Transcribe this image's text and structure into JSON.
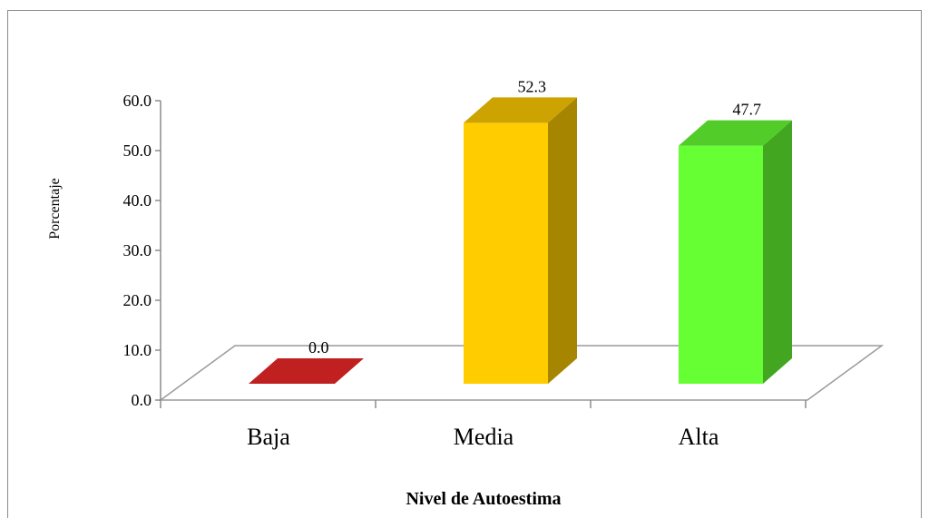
{
  "chart_data": {
    "type": "bar",
    "title": "",
    "xlabel": "Nivel de Autoestima",
    "ylabel": "Porcentaje",
    "categories": [
      "Baja",
      "Media",
      "Alta"
    ],
    "values": [
      0.0,
      52.3,
      47.7
    ],
    "value_labels": [
      "0.0",
      "52.3",
      "47.7"
    ],
    "ylim": [
      0,
      60
    ],
    "yticks": [
      "0.0",
      "10.0",
      "20.0",
      "30.0",
      "40.0",
      "50.0",
      "60.0"
    ],
    "grid": false,
    "legend": "none",
    "style": "3d",
    "colors": {
      "Baja": "#c0201f",
      "Media": "#ffcc00",
      "Alta": "#66ff33"
    }
  }
}
